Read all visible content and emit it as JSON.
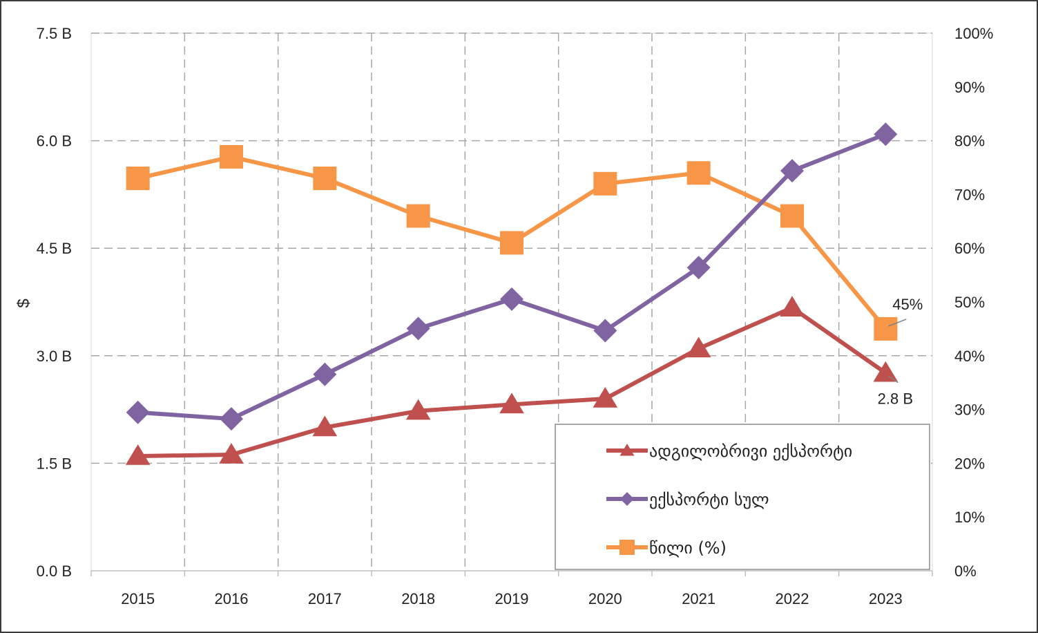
{
  "chart_data": {
    "type": "line",
    "title": "",
    "ylabel": "$",
    "ylabel_right": "",
    "categories": [
      "2015",
      "2016",
      "2017",
      "2018",
      "2019",
      "2020",
      "2021",
      "2022",
      "2023"
    ],
    "ylim": [
      0,
      7.5
    ],
    "ylim_right": [
      0,
      100
    ],
    "y_ticks": [
      "0.0 B",
      "1.5 B",
      "3.0 B",
      "4.5 B",
      "6.0 B",
      "7.5 B"
    ],
    "y2_ticks": [
      "0%",
      "10%",
      "20%",
      "30%",
      "40%",
      "50%",
      "60%",
      "70%",
      "80%",
      "90%",
      "100%"
    ],
    "grid": true,
    "legend_position": "bottom-right",
    "series": [
      {
        "name": "ადგილობრივი ექსპორტი",
        "axis": "left",
        "unit": "B $",
        "marker": "triangle",
        "color": "#C0504D",
        "values": [
          1.6,
          1.62,
          2.0,
          2.23,
          2.32,
          2.4,
          3.1,
          3.67,
          2.76
        ]
      },
      {
        "name": "ექსპორტი სულ",
        "axis": "left",
        "unit": "B $",
        "marker": "diamond",
        "color": "#8064A2",
        "values": [
          2.21,
          2.12,
          2.74,
          3.38,
          3.79,
          3.35,
          4.23,
          5.58,
          6.09
        ]
      },
      {
        "name": "წილი (%)",
        "axis": "right",
        "unit": "%",
        "marker": "square",
        "color": "#F79646",
        "values": [
          73,
          77,
          73,
          66,
          61,
          72,
          74,
          66,
          45
        ]
      }
    ],
    "annotations": [
      {
        "text": "45%",
        "series": 2,
        "index": 8
      },
      {
        "text": "2.8 B",
        "series": 0,
        "index": 8
      }
    ]
  }
}
